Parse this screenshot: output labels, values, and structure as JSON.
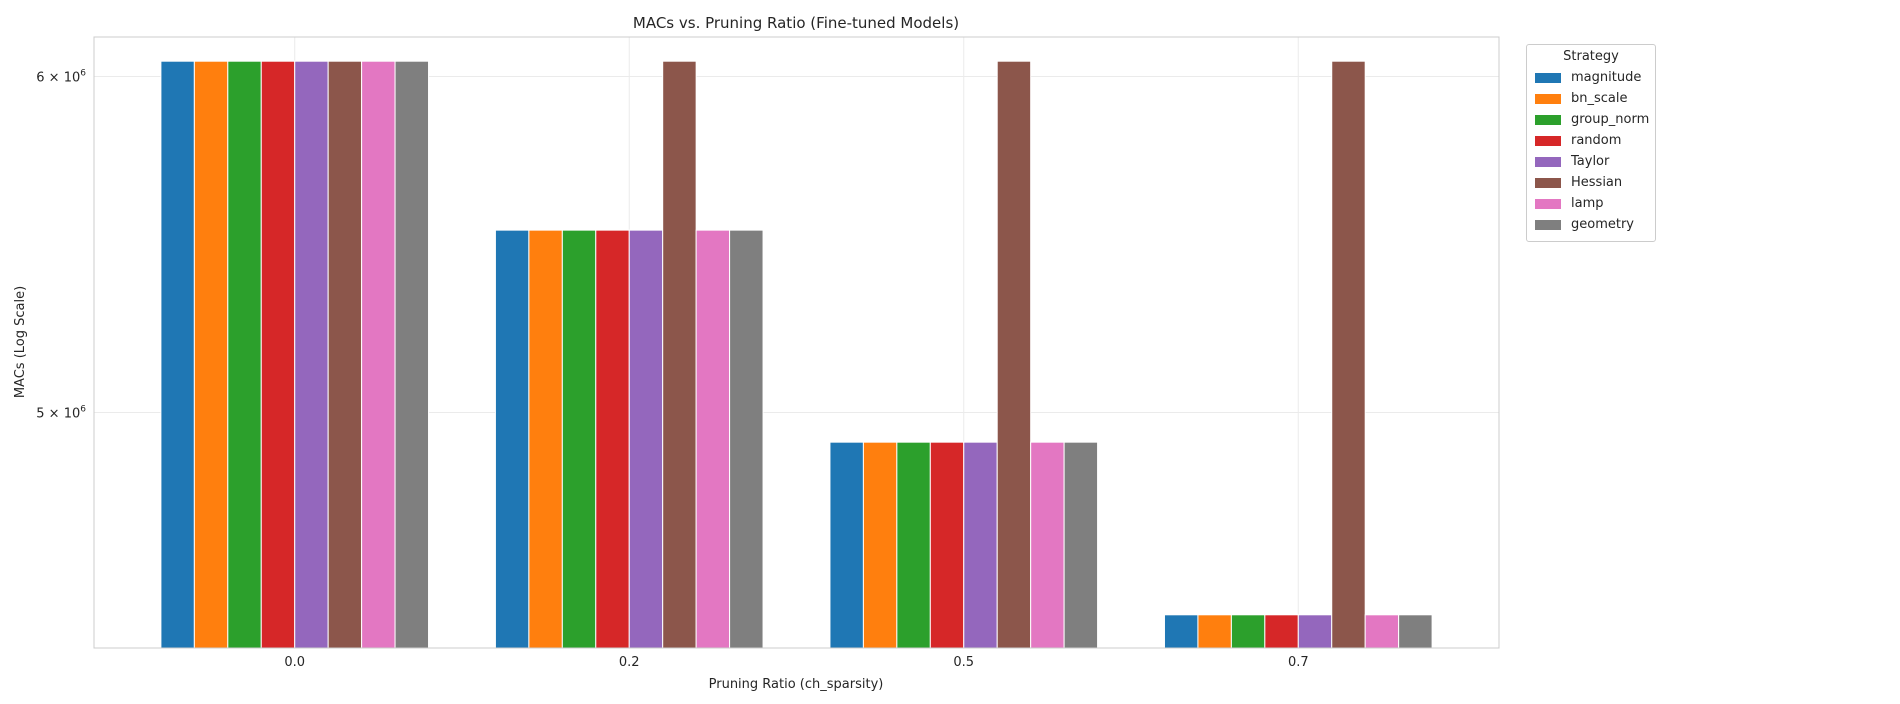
{
  "chart_data": {
    "type": "bar",
    "title": "MACs vs. Pruning Ratio (Fine-tuned Models)",
    "xlabel": "Pruning Ratio (ch_sparsity)",
    "ylabel": "MACs (Log Scale)",
    "yscale": "log",
    "ylim": [
      4400000,
      6130000
    ],
    "yticks": [
      {
        "value": 5000000,
        "mantissa": "5",
        "base": "10",
        "exp": "6"
      },
      {
        "value": 6000000,
        "mantissa": "6",
        "base": "10",
        "exp": "6"
      }
    ],
    "grid": true,
    "legend_title": "Strategy",
    "legend_position": "outside right, top",
    "categories": [
      "0.0",
      "0.2",
      "0.5",
      "0.7"
    ],
    "series": [
      {
        "name": "magnitude",
        "color": "#1f77b4",
        "values": [
          6050000,
          5520000,
          4920000,
          4480000
        ]
      },
      {
        "name": "bn_scale",
        "color": "#ff7f0e",
        "values": [
          6050000,
          5520000,
          4920000,
          4480000
        ]
      },
      {
        "name": "group_norm",
        "color": "#2ca02c",
        "values": [
          6050000,
          5520000,
          4920000,
          4480000
        ]
      },
      {
        "name": "random",
        "color": "#d62728",
        "values": [
          6050000,
          5520000,
          4920000,
          4480000
        ]
      },
      {
        "name": "Taylor",
        "color": "#9467bd",
        "values": [
          6050000,
          5520000,
          4920000,
          4480000
        ]
      },
      {
        "name": "Hessian",
        "color": "#8c564b",
        "values": [
          6050000,
          6050000,
          6050000,
          6050000
        ]
      },
      {
        "name": "lamp",
        "color": "#e377c2",
        "values": [
          6050000,
          5520000,
          4920000,
          4480000
        ]
      },
      {
        "name": "geometry",
        "color": "#7f7f7f",
        "values": [
          6050000,
          5520000,
          4920000,
          4480000
        ]
      }
    ]
  }
}
